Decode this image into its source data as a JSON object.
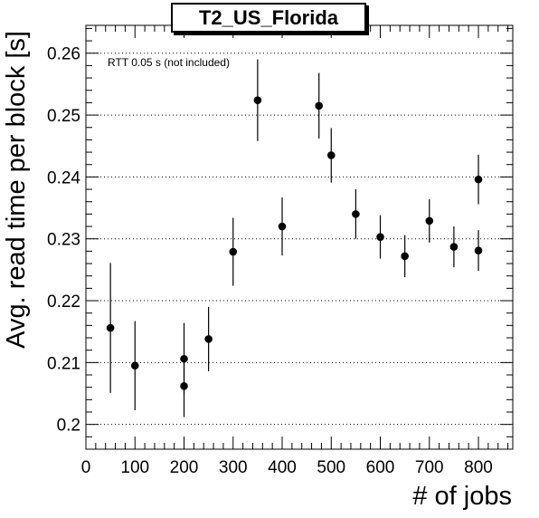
{
  "chart_data": {
    "type": "scatter",
    "title": "T2_US_Florida",
    "xlabel": "# of jobs",
    "ylabel": "Avg. read time per block [s]",
    "annotation": "RTT 0.05 s (not included)",
    "xlim": [
      0,
      870
    ],
    "ylim": [
      0.196,
      0.2645
    ],
    "x_ticks": [
      0,
      100,
      200,
      300,
      400,
      500,
      600,
      700,
      800
    ],
    "x_tick_labels": [
      "0",
      "100",
      "200",
      "300",
      "400",
      "500",
      "600",
      "700",
      "800"
    ],
    "y_ticks": [
      0.2,
      0.21,
      0.22,
      0.23,
      0.24,
      0.25,
      0.26
    ],
    "y_tick_labels": [
      "0.2",
      "0.21",
      "0.22",
      "0.23",
      "0.24",
      "0.25",
      "0.26"
    ],
    "grid": "horizontal dotted",
    "points": [
      {
        "x": 50,
        "y": 0.2156,
        "err": 0.0105
      },
      {
        "x": 100,
        "y": 0.2095,
        "err": 0.0072
      },
      {
        "x": 200,
        "y": 0.2106,
        "err": 0.0058
      },
      {
        "x": 200,
        "y": 0.2062,
        "err": 0.005
      },
      {
        "x": 250,
        "y": 0.2138,
        "err": 0.0052
      },
      {
        "x": 300,
        "y": 0.2279,
        "err": 0.0055
      },
      {
        "x": 350,
        "y": 0.2524,
        "err": 0.0066
      },
      {
        "x": 400,
        "y": 0.232,
        "err": 0.0047
      },
      {
        "x": 475,
        "y": 0.2515,
        "err": 0.0053
      },
      {
        "x": 500,
        "y": 0.2435,
        "err": 0.0044
      },
      {
        "x": 550,
        "y": 0.234,
        "err": 0.004
      },
      {
        "x": 600,
        "y": 0.2303,
        "err": 0.0035
      },
      {
        "x": 650,
        "y": 0.2272,
        "err": 0.0034
      },
      {
        "x": 700,
        "y": 0.2329,
        "err": 0.0035
      },
      {
        "x": 750,
        "y": 0.2287,
        "err": 0.0033
      },
      {
        "x": 800,
        "y": 0.2396,
        "err": 0.004
      },
      {
        "x": 800,
        "y": 0.2281,
        "err": 0.0033
      }
    ],
    "colors": {
      "marker": "#000000",
      "grid": "#000000",
      "frame": "#000000"
    }
  }
}
